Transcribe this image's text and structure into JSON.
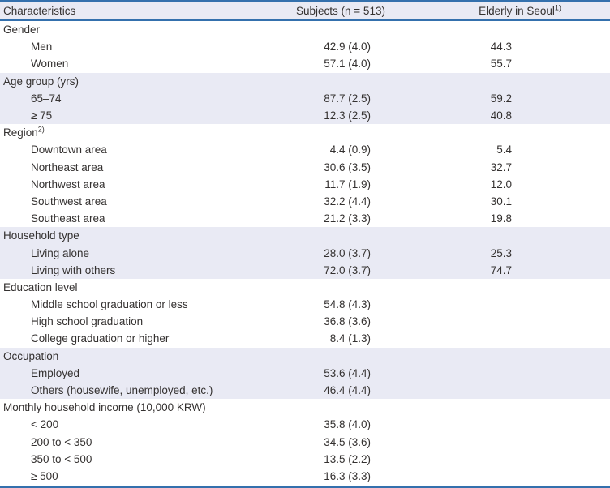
{
  "table": {
    "header": {
      "characteristics": "Characteristics",
      "subjects": "Subjects (n = 513)",
      "seoul": "Elderly in Seoul",
      "seoul_sup": "1)"
    },
    "sections": [
      {
        "label": "Gender",
        "superscript": "",
        "shaded": false,
        "rows": [
          {
            "label": "Men",
            "subjects": "42.9 (4.0)",
            "seoul": "44.3"
          },
          {
            "label": "Women",
            "subjects": "57.1 (4.0)",
            "seoul": "55.7"
          }
        ]
      },
      {
        "label": "Age group (yrs)",
        "superscript": "",
        "shaded": true,
        "rows": [
          {
            "label": "65–74",
            "subjects": "87.7 (2.5)",
            "seoul": "59.2"
          },
          {
            "label": "≥ 75",
            "subjects": "12.3 (2.5)",
            "seoul": "40.8"
          }
        ]
      },
      {
        "label": "Region",
        "superscript": "2)",
        "shaded": false,
        "rows": [
          {
            "label": "Downtown area",
            "subjects": "4.4 (0.9)",
            "seoul": "5.4"
          },
          {
            "label": "Northeast area",
            "subjects": "30.6 (3.5)",
            "seoul": "32.7"
          },
          {
            "label": "Northwest area",
            "subjects": "11.7 (1.9)",
            "seoul": "12.0"
          },
          {
            "label": "Southwest area",
            "subjects": "32.2 (4.4)",
            "seoul": "30.1"
          },
          {
            "label": "Southeast area",
            "subjects": "21.2 (3.3)",
            "seoul": "19.8"
          }
        ]
      },
      {
        "label": "Household type",
        "superscript": "",
        "shaded": true,
        "rows": [
          {
            "label": "Living alone",
            "subjects": "28.0 (3.7)",
            "seoul": "25.3"
          },
          {
            "label": "Living with others",
            "subjects": "72.0 (3.7)",
            "seoul": "74.7"
          }
        ]
      },
      {
        "label": "Education level",
        "superscript": "",
        "shaded": false,
        "rows": [
          {
            "label": "Middle school graduation or less",
            "subjects": "54.8 (4.3)",
            "seoul": ""
          },
          {
            "label": "High school graduation",
            "subjects": "36.8 (3.6)",
            "seoul": ""
          },
          {
            "label": "College graduation or higher",
            "subjects": "8.4 (1.3)",
            "seoul": ""
          }
        ]
      },
      {
        "label": "Occupation",
        "superscript": "",
        "shaded": true,
        "rows": [
          {
            "label": "Employed",
            "subjects": "53.6 (4.4)",
            "seoul": ""
          },
          {
            "label": "Others (housewife, unemployed, etc.)",
            "subjects": "46.4 (4.4)",
            "seoul": ""
          }
        ]
      },
      {
        "label": "Monthly household income (10,000 KRW)",
        "superscript": "",
        "shaded": false,
        "rows": [
          {
            "label": "< 200",
            "subjects": "35.8 (4.0)",
            "seoul": ""
          },
          {
            "label": "200 to < 350",
            "subjects": "34.5 (3.6)",
            "seoul": ""
          },
          {
            "label": "350 to < 500",
            "subjects": "13.5 (2.2)",
            "seoul": ""
          },
          {
            "label": "≥ 500",
            "subjects": "16.3 (3.3)",
            "seoul": ""
          }
        ]
      }
    ],
    "colors": {
      "accent_border": "#3470ad",
      "shaded_row_bg": "#e9eaf4",
      "text": "#343130"
    }
  }
}
